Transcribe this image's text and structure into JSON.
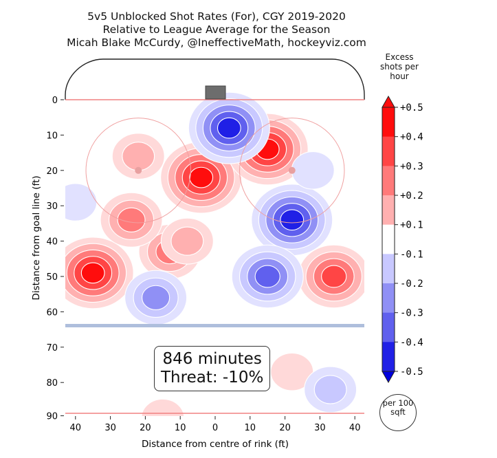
{
  "chart_data": {
    "type": "heatmap",
    "title_lines": [
      "5v5 Unblocked Shot Rates (For), CGY 2019-2020",
      "Relative to League Average for the Season",
      "Micah Blake McCurdy, @IneffectiveMath, hockeyviz.com"
    ],
    "xlabel": "Distance from centre of rink (ft)",
    "ylabel": "Distance from goal line (ft)",
    "x_ticks": [
      "40",
      "30",
      "20",
      "10",
      "0",
      "10",
      "20",
      "30",
      "40"
    ],
    "y_ticks": [
      "0",
      "10",
      "20",
      "30",
      "40",
      "50",
      "60",
      "70",
      "80",
      "90"
    ],
    "xlim": [
      -42,
      42
    ],
    "ylim": [
      0,
      90
    ],
    "colorbar": {
      "title": "Excess shots per hour",
      "tick_labels": [
        "+0.5",
        "+0.4",
        "+0.3",
        "+0.2",
        "+0.1",
        "-0.1",
        "-0.2",
        "-0.3",
        "-0.4",
        "-0.5"
      ],
      "colors": [
        "#ff0d0d",
        "#ff4545",
        "#ff7a7a",
        "#ffb0b0",
        "#ffffff",
        "#c8c8ff",
        "#9090f5",
        "#6060ee",
        "#2020e6"
      ],
      "annotation": "per 100 sqft"
    },
    "annotation": {
      "minutes": "846 minutes",
      "threat": "Threat: -10%"
    },
    "hotspots": [
      {
        "x": -35,
        "y": 49,
        "value": 0.5
      },
      {
        "x": -4,
        "y": 22,
        "value": 0.5
      },
      {
        "x": 15,
        "y": 14,
        "value": 0.45
      },
      {
        "x": 34,
        "y": 50,
        "value": 0.4
      },
      {
        "x": -13,
        "y": 43,
        "value": 0.3
      },
      {
        "x": -24,
        "y": 34,
        "value": 0.25
      },
      {
        "x": -22,
        "y": 16,
        "value": 0.2
      },
      {
        "x": -8,
        "y": 40,
        "value": 0.2
      },
      {
        "x": 22,
        "y": 77,
        "value": 0.15
      },
      {
        "x": -15,
        "y": 90,
        "value": 0.15
      },
      {
        "x": 4,
        "y": 8,
        "value": -0.5
      },
      {
        "x": 22,
        "y": 34,
        "value": -0.5
      },
      {
        "x": 15,
        "y": 50,
        "value": -0.4
      },
      {
        "x": -17,
        "y": 56,
        "value": -0.3
      },
      {
        "x": 33,
        "y": 82,
        "value": -0.2
      },
      {
        "x": 28,
        "y": 20,
        "value": -0.15
      },
      {
        "x": -40,
        "y": 29,
        "value": -0.15
      }
    ]
  }
}
